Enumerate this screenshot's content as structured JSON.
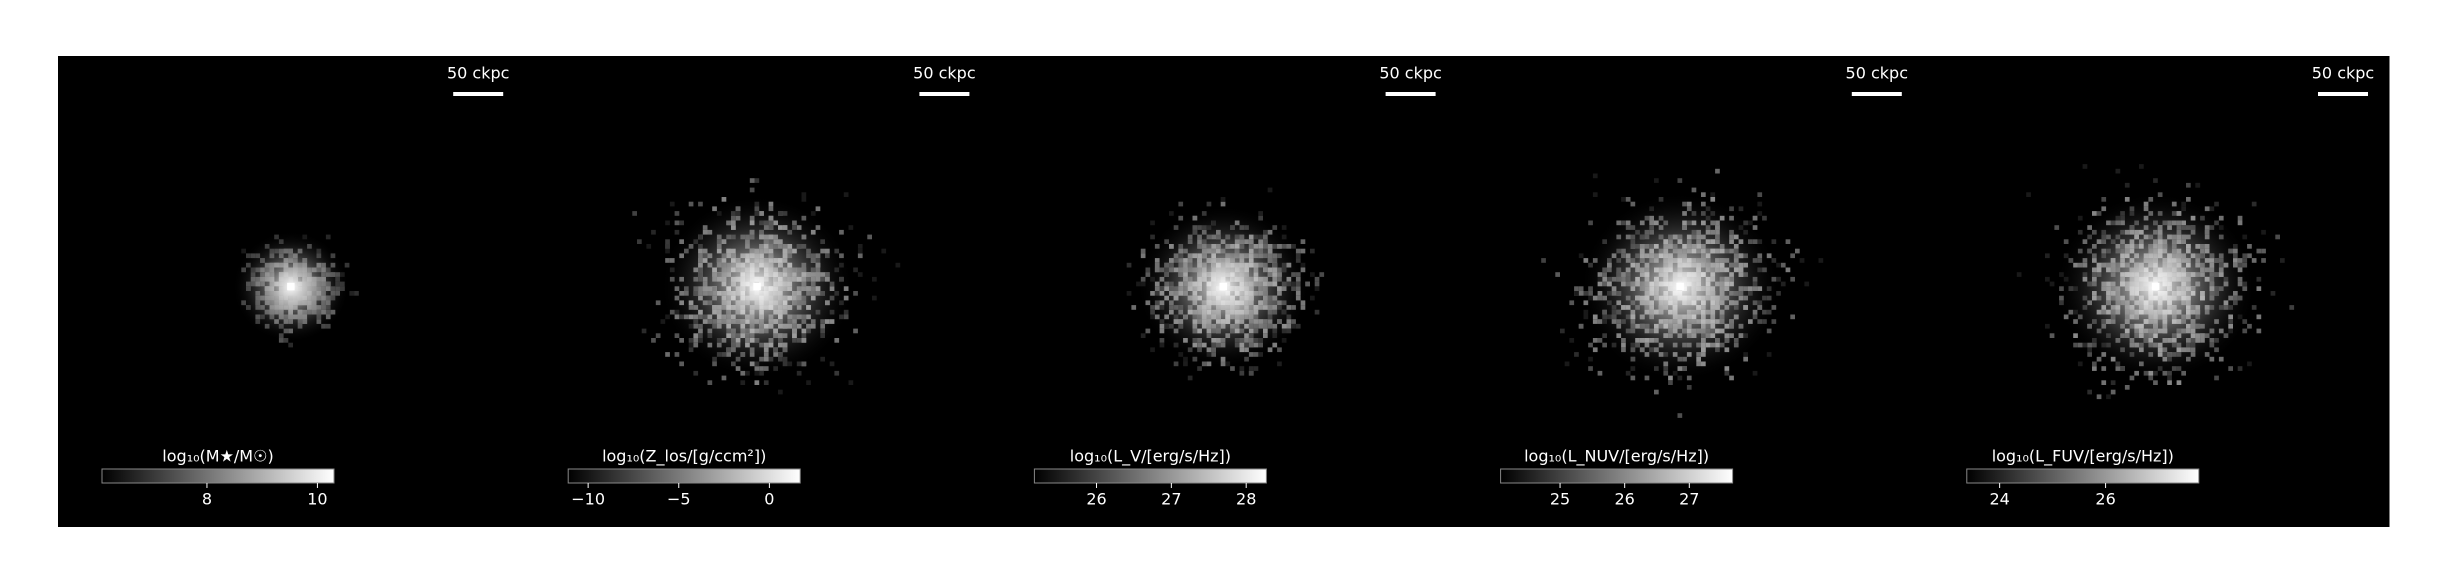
{
  "chart_data": [
    {
      "type": "image",
      "scale_bar_label": "50 ckpc",
      "colorbar": {
        "label": "log₁₀(M★/M☉)",
        "clim": [
          6.1,
          10.3
        ],
        "ticks": [
          8,
          10
        ]
      }
    },
    {
      "type": "image",
      "scale_bar_label": "50 ckpc",
      "colorbar": {
        "label": "log₁₀(Z_los/[g/ccm²])",
        "clim": [
          -11.1,
          1.7
        ],
        "ticks": [
          {
            "value": -10,
            "label": "−10"
          },
          {
            "value": -5,
            "label": "−5"
          },
          0
        ]
      }
    },
    {
      "type": "image",
      "scale_bar_label": "50 ckpc",
      "colorbar": {
        "label": "log₁₀(L_V/[erg/s/Hz])",
        "clim": [
          25.17,
          28.27
        ],
        "ticks": [
          26,
          27,
          28
        ]
      }
    },
    {
      "type": "image",
      "scale_bar_label": "50 ckpc",
      "colorbar": {
        "label": "log₁₀(L_NUV/[erg/s/Hz])",
        "clim": [
          24.08,
          27.67
        ],
        "ticks": [
          25,
          26,
          27
        ]
      }
    },
    {
      "type": "image",
      "scale_bar_label": "50 ckpc",
      "colorbar": {
        "label": "log₁₀(L_FUV/[erg/s/Hz])",
        "clim": [
          23.38,
          27.76
        ],
        "ticks": [
          24,
          26
        ]
      }
    }
  ]
}
